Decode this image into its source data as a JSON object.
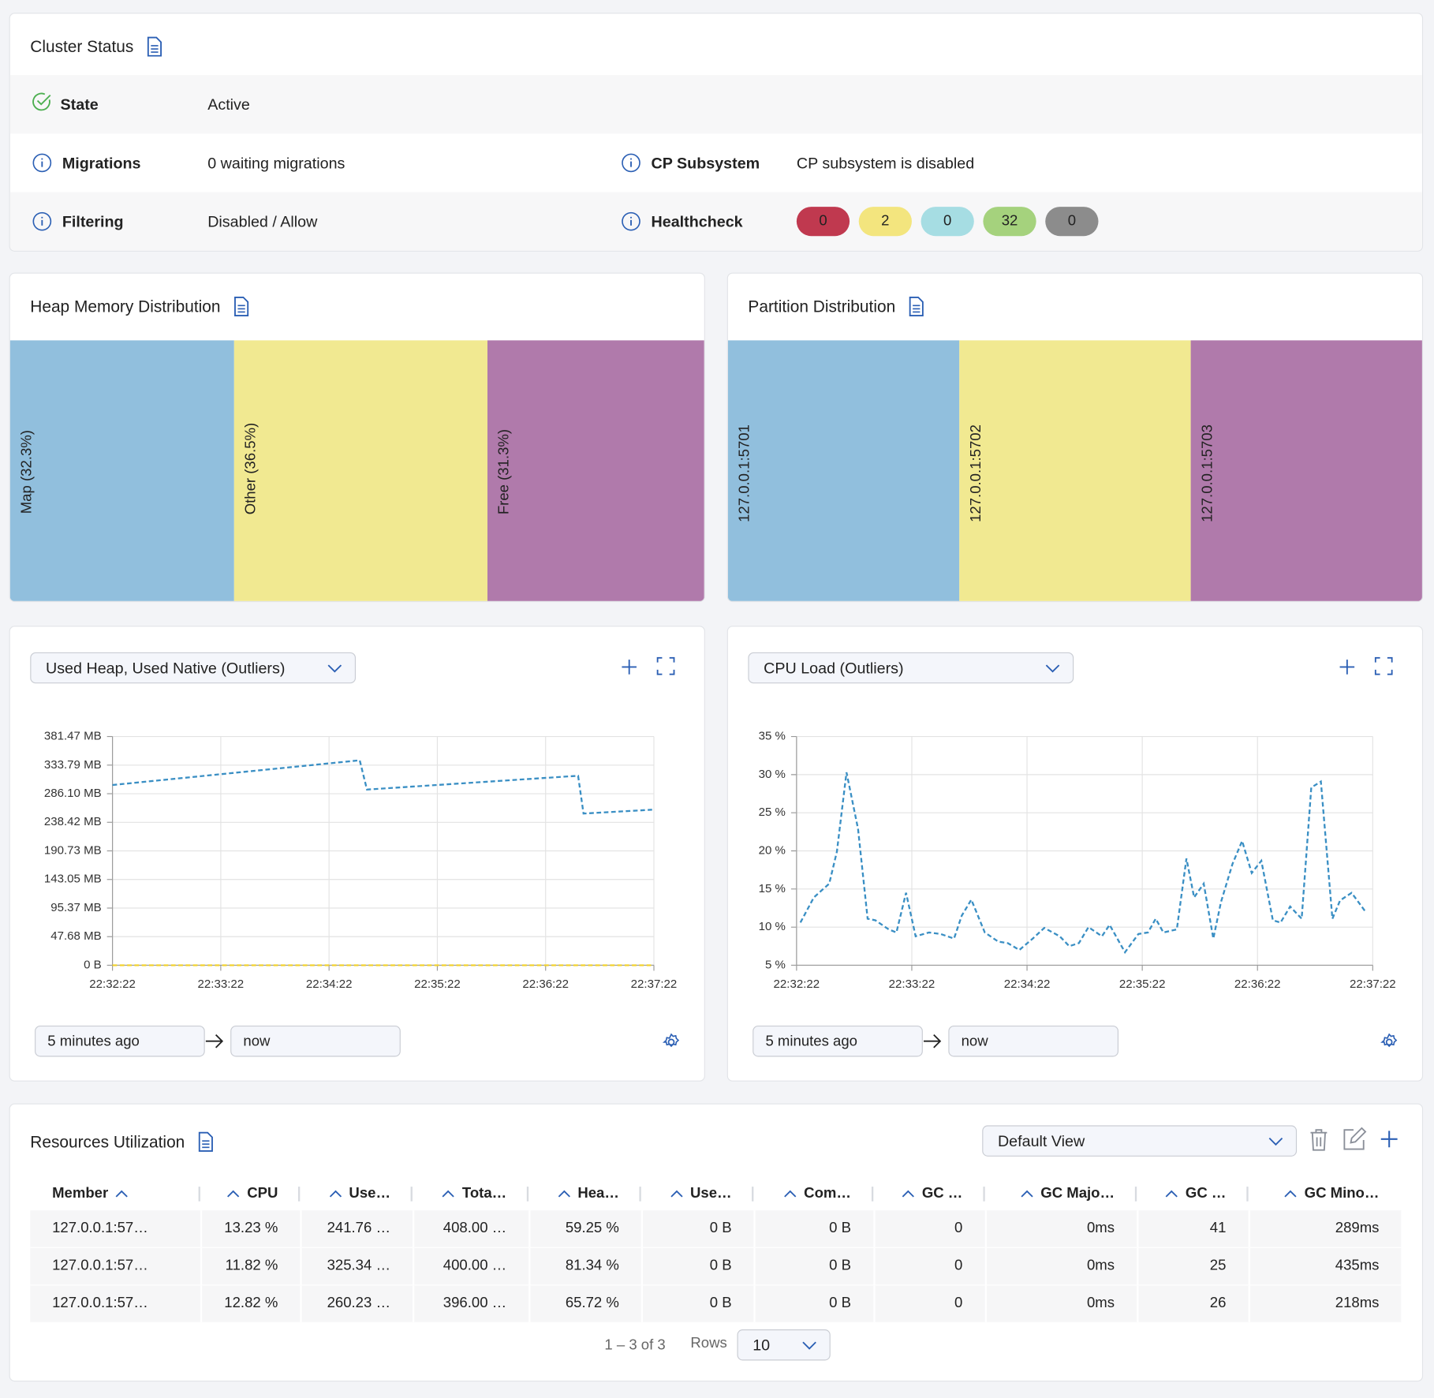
{
  "cluster_status": {
    "title": "Cluster Status",
    "state": {
      "label": "State",
      "value": "Active"
    },
    "migrations": {
      "label": "Migrations",
      "value": "0 waiting migrations"
    },
    "filtering": {
      "label": "Filtering",
      "value": "Disabled / Allow"
    },
    "cp_subsystem": {
      "label": "CP Subsystem",
      "value": "CP subsystem is disabled"
    },
    "healthcheck": {
      "label": "Healthcheck",
      "counts": [
        {
          "value": 0,
          "color": "#c0394f"
        },
        {
          "value": 2,
          "color": "#f3e57e"
        },
        {
          "value": 0,
          "color": "#a6dde3"
        },
        {
          "value": 32,
          "color": "#a5d27d"
        },
        {
          "value": 0,
          "color": "#8c8c8c"
        }
      ]
    }
  },
  "heap_memory": {
    "title": "Heap Memory Distribution",
    "values": [
      32.3,
      36.5,
      31.3
    ],
    "value_labels": [
      "Map (32.3%)",
      "Other (36.5%)",
      "Free (31.3%)"
    ],
    "colors": [
      "#91bfdd",
      "#f1e991",
      "#b07aab"
    ]
  },
  "partition_distribution": {
    "title": "Partition Distribution",
    "labels": [
      "127.0.0.1:5701",
      "127.0.0.1:5702",
      "127.0.0.1:5703"
    ],
    "colors": [
      "#91bfdd",
      "#f1e991",
      "#b07aab"
    ]
  },
  "time_range": {
    "from": "5 minutes ago",
    "to": "now"
  },
  "chart_data": [
    {
      "type": "line",
      "selector": "Used Heap, Used Native (Outliers)",
      "grid": true,
      "xlim": [
        0,
        300
      ],
      "xticks": [
        {
          "value": 0,
          "label": "22:32:22"
        },
        {
          "value": 60,
          "label": "22:33:22"
        },
        {
          "value": 120,
          "label": "22:34:22"
        },
        {
          "value": 180,
          "label": "22:35:22"
        },
        {
          "value": 240,
          "label": "22:36:22"
        },
        {
          "value": 300,
          "label": "22:37:22"
        }
      ],
      "ylim": [
        0,
        381.47
      ],
      "yticks": [
        {
          "value": 0,
          "label": "0 B"
        },
        {
          "value": 47.68,
          "label": "47.68 MB"
        },
        {
          "value": 95.37,
          "label": "95.37 MB"
        },
        {
          "value": 143.05,
          "label": "143.05 MB"
        },
        {
          "value": 190.73,
          "label": "190.73 MB"
        },
        {
          "value": 238.42,
          "label": "238.42 MB"
        },
        {
          "value": 286.1,
          "label": "286.10 MB"
        },
        {
          "value": 333.79,
          "label": "333.79 MB"
        },
        {
          "value": 381.47,
          "label": "381.47 MB"
        }
      ],
      "series": [
        {
          "color": "#3a8fc4",
          "x": [
            0,
            137,
            141,
            258,
            261,
            299
          ],
          "values": [
            300.6,
            341.8,
            293,
            316,
            253,
            259.4
          ]
        },
        {
          "color": "#f2d22e",
          "x": [
            0,
            300
          ],
          "values": [
            0,
            0
          ]
        }
      ]
    },
    {
      "type": "line",
      "selector": "CPU Load (Outliers)",
      "grid": true,
      "xlim": [
        0,
        300
      ],
      "xticks": [
        {
          "value": 0,
          "label": "22:32:22"
        },
        {
          "value": 60,
          "label": "22:33:22"
        },
        {
          "value": 120,
          "label": "22:34:22"
        },
        {
          "value": 180,
          "label": "22:35:22"
        },
        {
          "value": 240,
          "label": "22:36:22"
        },
        {
          "value": 300,
          "label": "22:37:22"
        }
      ],
      "ylim": [
        5,
        35
      ],
      "yticks": [
        {
          "value": 5,
          "label": "5 %"
        },
        {
          "value": 10,
          "label": "10 %"
        },
        {
          "value": 15,
          "label": "15 %"
        },
        {
          "value": 20,
          "label": "20 %"
        },
        {
          "value": 25,
          "label": "25 %"
        },
        {
          "value": 30,
          "label": "30 %"
        },
        {
          "value": 35,
          "label": "35 %"
        }
      ],
      "series": [
        {
          "color": "#3a8fc4",
          "x": [
            2,
            9,
            17,
            21,
            26,
            32,
            37,
            41,
            48,
            52,
            57,
            62,
            69,
            75,
            82,
            86,
            91,
            98,
            105,
            110,
            116,
            123,
            129,
            137,
            142,
            147,
            152,
            159,
            163,
            171,
            178,
            183,
            187,
            191,
            198,
            203,
            207,
            212,
            217,
            221,
            227,
            232,
            237,
            242,
            248,
            252,
            257,
            263,
            268,
            273,
            279,
            283,
            289,
            296
          ],
          "values": [
            10.6,
            13.9,
            15.7,
            19.9,
            30.3,
            22.9,
            11.1,
            10.9,
            9.7,
            9.3,
            14.5,
            8.8,
            9.3,
            9.1,
            8.5,
            11.5,
            13.6,
            9.3,
            8.1,
            7.9,
            7.0,
            8.5,
            9.9,
            8.8,
            7.5,
            7.9,
            10.0,
            8.8,
            10.3,
            6.7,
            9.1,
            9.3,
            11.1,
            9.3,
            9.7,
            19.0,
            13.9,
            15.7,
            8.5,
            13.3,
            18.3,
            21.3,
            17.1,
            18.7,
            10.9,
            10.6,
            12.7,
            11.1,
            28.3,
            29.1,
            11.1,
            13.5,
            14.5,
            12.1
          ]
        }
      ]
    }
  ],
  "resources": {
    "title": "Resources Utilization",
    "view": "Default View",
    "columns": [
      "Member",
      "CPU",
      "Use…",
      "Tota…",
      "Hea…",
      "Use…",
      "Com…",
      "GC …",
      "GC Majo…",
      "GC …",
      "GC Mino…"
    ],
    "rows": [
      [
        "127.0.0.1:57…",
        "13.23 %",
        "241.76 …",
        "408.00 …",
        "59.25 %",
        "0 B",
        "0 B",
        0,
        "0ms",
        41,
        "289ms"
      ],
      [
        "127.0.0.1:57…",
        "11.82 %",
        "325.34 …",
        "400.00 …",
        "81.34 %",
        "0 B",
        "0 B",
        0,
        "0ms",
        25,
        "435ms"
      ],
      [
        "127.0.0.1:57…",
        "12.82 %",
        "260.23 …",
        "396.00 …",
        "65.72 %",
        "0 B",
        "0 B",
        0,
        "0ms",
        26,
        "218ms"
      ]
    ],
    "pagination": "1 – 3 of 3",
    "rows_label": "Rows",
    "page_size": "10"
  }
}
